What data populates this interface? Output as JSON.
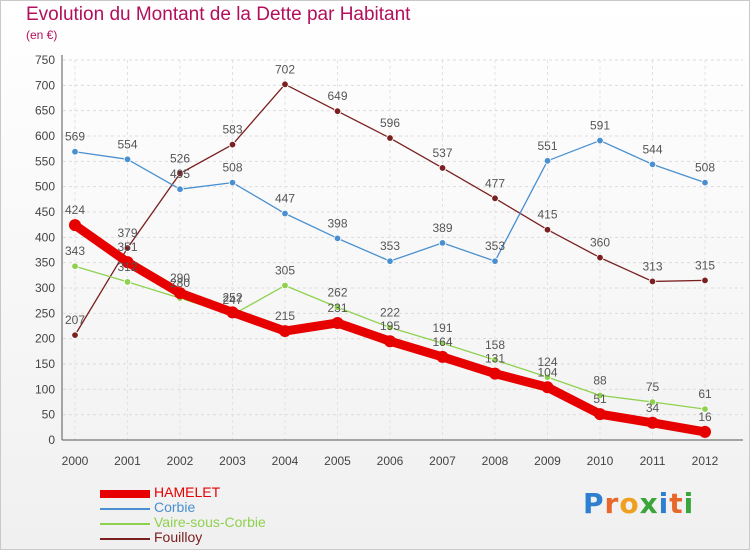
{
  "title": "Evolution du Montant de la Dette par Habitant",
  "subtitle": "(en €)",
  "logo": "Proxiti",
  "chart_data": {
    "type": "line",
    "x": [
      "2000",
      "2001",
      "2002",
      "2003",
      "2004",
      "2005",
      "2006",
      "2007",
      "2008",
      "2009",
      "2010",
      "2011",
      "2012"
    ],
    "ylim": [
      0,
      750
    ],
    "yticks": [
      "0",
      "50",
      "100",
      "150",
      "200",
      "250",
      "300",
      "350",
      "400",
      "450",
      "500",
      "550",
      "600",
      "650",
      "700",
      "750"
    ],
    "grid": true,
    "legend_position": "bottom-left",
    "series": [
      {
        "name": "HAMELET",
        "color": "#e60000",
        "values": [
          424,
          351,
          290,
          252,
          215,
          231,
          195,
          164,
          131,
          104,
          51,
          34,
          16
        ]
      },
      {
        "name": "Corbie",
        "color": "#4a90d0",
        "values": [
          569,
          554,
          495,
          508,
          447,
          398,
          353,
          389,
          353,
          551,
          591,
          544,
          508
        ]
      },
      {
        "name": "Vaire-sous-Corbie",
        "color": "#8fd14f",
        "values": [
          343,
          312,
          280,
          247,
          305,
          262,
          222,
          191,
          158,
          124,
          88,
          75,
          61
        ]
      },
      {
        "name": "Fouilloy",
        "color": "#7a2020",
        "values": [
          207,
          379,
          526,
          583,
          702,
          649,
          596,
          537,
          477,
          415,
          360,
          313,
          315
        ]
      }
    ]
  }
}
